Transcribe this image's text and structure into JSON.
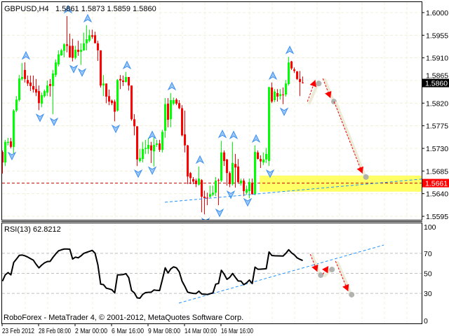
{
  "header": {
    "symbol": "GBPUSD,H4",
    "ohlc": "1.5861 1.5873 1.5859 1.5860"
  },
  "rsi_label": "RSI(13) 62.8212",
  "copyright": "RoboForex - MetaTrader 4, © 2001-2012, MetaQuotes Software Corp.",
  "colors": {
    "bull": "#00ff00",
    "bear": "#ff0000",
    "fractal": "#3b8ff0",
    "trendline": "#1e90ff",
    "zone": "#ffff66",
    "forecast_arrow": "#ff0000",
    "current_price_bg": "#000000",
    "level_price_bg": "#ff0000",
    "rsi_line": "#000000"
  },
  "chart_data": [
    {
      "type": "candlestick",
      "timeframe": "H4",
      "symbol": "GBPUSD",
      "price_axis": {
        "ylim": [
          1.558,
          1.6022
        ],
        "ticks": [
          "1.6000",
          "1.5955",
          "1.5910",
          "1.5865",
          "1.5820",
          "1.5775",
          "1.5730",
          "1.5685",
          "1.5640",
          "1.5595"
        ]
      },
      "time_axis": {
        "ticks": [
          {
            "bar": 0,
            "label": "23 Feb 2012"
          },
          {
            "bar": 13,
            "label": "28 Feb 08:00"
          },
          {
            "bar": 26,
            "label": "2 Mar 00:00"
          },
          {
            "bar": 39,
            "label": "6 Mar 16:00"
          },
          {
            "bar": 52,
            "label": "9 Mar 08:00"
          },
          {
            "bar": 65,
            "label": "14 Mar 00:00"
          },
          {
            "bar": 78,
            "label": "16 Mar 16:00"
          }
        ]
      },
      "grid": true,
      "candles_ohlc": [
        [
          1.5723,
          1.5726,
          1.568,
          1.5702
        ],
        [
          1.5702,
          1.5747,
          1.5695,
          1.5743
        ],
        [
          1.5741,
          1.5751,
          1.5736,
          1.5743
        ],
        [
          1.5744,
          1.5751,
          1.573,
          1.5733
        ],
        [
          1.5733,
          1.5808,
          1.5719,
          1.5805
        ],
        [
          1.5805,
          1.5834,
          1.5802,
          1.5827
        ],
        [
          1.5826,
          1.5876,
          1.5823,
          1.5869
        ],
        [
          1.5868,
          1.59,
          1.5865,
          1.5872
        ],
        [
          1.5886,
          1.5901,
          1.5861,
          1.5868
        ],
        [
          1.5866,
          1.5875,
          1.5854,
          1.5859
        ],
        [
          1.5861,
          1.5875,
          1.5844,
          1.5854
        ],
        [
          1.5854,
          1.5875,
          1.5841,
          1.5847
        ],
        [
          1.5848,
          1.5868,
          1.5834,
          1.5841
        ],
        [
          1.5844,
          1.5855,
          1.5806,
          1.582
        ],
        [
          1.5819,
          1.5841,
          1.5812,
          1.5836
        ],
        [
          1.5834,
          1.5847,
          1.5831,
          1.5844
        ],
        [
          1.5841,
          1.5865,
          1.5834,
          1.5855
        ],
        [
          1.5858,
          1.5868,
          1.5833,
          1.5854
        ],
        [
          1.5854,
          1.5886,
          1.5798,
          1.5879
        ],
        [
          1.5876,
          1.5907,
          1.5872,
          1.5901
        ],
        [
          1.5897,
          1.5925,
          1.5893,
          1.5917
        ],
        [
          1.5915,
          1.5928,
          1.5914,
          1.5925
        ],
        [
          1.5924,
          1.5939,
          1.5911,
          1.5937
        ],
        [
          1.5937,
          1.5993,
          1.5921,
          1.5934
        ],
        [
          1.5934,
          1.5958,
          1.591,
          1.5911
        ],
        [
          1.5934,
          1.5948,
          1.5903,
          1.591
        ],
        [
          1.591,
          1.5934,
          1.5907,
          1.5926
        ],
        [
          1.5926,
          1.5944,
          1.5914,
          1.5922
        ],
        [
          1.5922,
          1.5939,
          1.5896,
          1.5926
        ],
        [
          1.5925,
          1.596,
          1.5924,
          1.5939
        ],
        [
          1.5939,
          1.5975,
          1.5925,
          1.5947
        ],
        [
          1.5944,
          1.5966,
          1.5941,
          1.5955
        ],
        [
          1.5955,
          1.5966,
          1.5948,
          1.5952
        ],
        [
          1.5955,
          1.5962,
          1.5939,
          1.5939
        ],
        [
          1.5939,
          1.5944,
          1.5904,
          1.5925
        ],
        [
          1.5925,
          1.5925,
          1.5851,
          1.5855
        ],
        [
          1.5855,
          1.5876,
          1.5834,
          1.5859
        ],
        [
          1.5859,
          1.5859,
          1.582,
          1.5833
        ],
        [
          1.5834,
          1.5847,
          1.5816,
          1.5823
        ],
        [
          1.5825,
          1.5827,
          1.5816,
          1.582
        ],
        [
          1.5823,
          1.5827,
          1.5784,
          1.5803
        ],
        [
          1.5805,
          1.5868,
          1.5803,
          1.5866
        ],
        [
          1.5868,
          1.5876,
          1.5848,
          1.5865
        ],
        [
          1.5865,
          1.5875,
          1.5854,
          1.5862
        ],
        [
          1.5862,
          1.5882,
          1.5861,
          1.5872
        ],
        [
          1.5872,
          1.5872,
          1.5845,
          1.5855
        ],
        [
          1.5855,
          1.5855,
          1.5785,
          1.5788
        ],
        [
          1.5788,
          1.5798,
          1.5756,
          1.5774
        ],
        [
          1.5774,
          1.5774,
          1.5695,
          1.5708
        ],
        [
          1.5705,
          1.5729,
          1.5702,
          1.5711
        ],
        [
          1.5709,
          1.5743,
          1.5702,
          1.5729
        ],
        [
          1.5729,
          1.5747,
          1.5719,
          1.5731
        ],
        [
          1.5729,
          1.5751,
          1.5719,
          1.5737
        ],
        [
          1.5736,
          1.5743,
          1.5701,
          1.5726
        ],
        [
          1.5724,
          1.5754,
          1.5694,
          1.5737
        ],
        [
          1.5737,
          1.5747,
          1.5733,
          1.574
        ],
        [
          1.574,
          1.5747,
          1.5723,
          1.5727
        ],
        [
          1.5727,
          1.5767,
          1.5722,
          1.5763
        ],
        [
          1.5765,
          1.583,
          1.5751,
          1.5818
        ],
        [
          1.5819,
          1.583,
          1.5772,
          1.5787
        ],
        [
          1.5788,
          1.584,
          1.5772,
          1.5826
        ],
        [
          1.5819,
          1.5831,
          1.5816,
          1.5826
        ],
        [
          1.5827,
          1.583,
          1.5816,
          1.5819
        ],
        [
          1.582,
          1.5826,
          1.5808,
          1.581
        ],
        [
          1.581,
          1.5816,
          1.5754,
          1.5756
        ],
        [
          1.5758,
          1.5805,
          1.5722,
          1.5736
        ],
        [
          1.5736,
          1.5737,
          1.5659,
          1.5674
        ],
        [
          1.5681,
          1.5683,
          1.5659,
          1.5671
        ],
        [
          1.5669,
          1.5673,
          1.5659,
          1.5664
        ],
        [
          1.5666,
          1.567,
          1.5653,
          1.5659
        ],
        [
          1.5658,
          1.5694,
          1.5656,
          1.567
        ],
        [
          1.5667,
          1.5669,
          1.5603,
          1.5634
        ],
        [
          1.5634,
          1.5646,
          1.5599,
          1.5631
        ],
        [
          1.5632,
          1.5642,
          1.5617,
          1.5631
        ],
        [
          1.5634,
          1.5656,
          1.5631,
          1.5639
        ],
        [
          1.5638,
          1.5656,
          1.5635,
          1.5642
        ],
        [
          1.5642,
          1.5673,
          1.5635,
          1.5666
        ],
        [
          1.5667,
          1.567,
          1.5617,
          1.5666
        ],
        [
          1.5666,
          1.5745,
          1.5663,
          1.5722
        ],
        [
          1.5722,
          1.5726,
          1.5695,
          1.5705
        ],
        [
          1.5708,
          1.5709,
          1.5656,
          1.5681
        ],
        [
          1.5681,
          1.5684,
          1.5653,
          1.5659
        ],
        [
          1.5659,
          1.5743,
          1.5656,
          1.5701
        ],
        [
          1.5699,
          1.5719,
          1.5652,
          1.5692
        ],
        [
          1.5694,
          1.5709,
          1.566,
          1.5663
        ],
        [
          1.566,
          1.567,
          1.5656,
          1.5666
        ],
        [
          1.5666,
          1.567,
          1.5635,
          1.5645
        ],
        [
          1.5642,
          1.5656,
          1.5638,
          1.5649
        ],
        [
          1.5645,
          1.567,
          1.5631,
          1.5663
        ],
        [
          1.5662,
          1.567,
          1.5638,
          1.5639
        ],
        [
          1.5639,
          1.5736,
          1.5637,
          1.5723
        ],
        [
          1.5722,
          1.5726,
          1.5708,
          1.5709
        ],
        [
          1.5709,
          1.5716,
          1.5691,
          1.5704
        ],
        [
          1.5702,
          1.5722,
          1.5697,
          1.5708
        ],
        [
          1.5708,
          1.5731,
          1.5701,
          1.5719
        ],
        [
          1.5705,
          1.5852,
          1.5695,
          1.5852
        ],
        [
          1.5851,
          1.5861,
          1.582,
          1.5823
        ],
        [
          1.5826,
          1.5848,
          1.5822,
          1.5843
        ],
        [
          1.584,
          1.5848,
          1.5823,
          1.5833
        ],
        [
          1.5834,
          1.5848,
          1.5827,
          1.5838
        ],
        [
          1.5837,
          1.5851,
          1.5818,
          1.5836
        ],
        [
          1.5837,
          1.5866,
          1.5833,
          1.5859
        ],
        [
          1.5858,
          1.5912,
          1.5855,
          1.5901
        ],
        [
          1.5903,
          1.5904,
          1.5886,
          1.5889
        ],
        [
          1.5887,
          1.5891,
          1.588,
          1.5884
        ],
        [
          1.5883,
          1.5884,
          1.5866,
          1.5868
        ],
        [
          1.5868,
          1.5884,
          1.5834,
          1.5862
        ],
        [
          1.5861,
          1.5873,
          1.5859,
          1.586
        ]
      ],
      "fractals_up": [
        8,
        23,
        30,
        44,
        53,
        60,
        70,
        78,
        82,
        90,
        96,
        102
      ],
      "fractals_down": [
        3,
        13,
        18,
        25,
        28,
        40,
        48,
        53,
        72,
        77,
        81,
        87,
        95,
        100
      ],
      "current_price": "1.5860",
      "level_line": {
        "price": 1.5661,
        "label": "1.5661"
      },
      "support_zone": {
        "from_bar": 92,
        "price_range": [
          1.5644,
          1.5676
        ]
      },
      "trendline": {
        "from": [
          58,
          1.5623
        ],
        "to": [
          149.6,
          1.5669
        ]
      },
      "forecast_arrows": [
        {
          "from": [
            108.8,
            1.5823
          ],
          "to": [
            111.6,
            1.5866
          ]
        },
        {
          "from": [
            114.3,
            1.5869
          ],
          "to": [
            117.0,
            1.583
          ]
        },
        {
          "from": [
            118.3,
            1.5823
          ],
          "to": [
            128.4,
            1.568
          ]
        }
      ]
    },
    {
      "type": "line",
      "name": "RSI(13)",
      "ylim": [
        0,
        100
      ],
      "ticks": [
        "100",
        "70",
        "50",
        "30",
        "0"
      ],
      "levels": [
        70,
        50,
        30
      ],
      "values": [
        42.2,
        48.5,
        50.8,
        48.5,
        60.8,
        64.3,
        68.0,
        68.3,
        67.5,
        66.3,
        64.7,
        63.2,
        59.0,
        55.5,
        58.3,
        60.5,
        61.8,
        62.0,
        66.0,
        69.5,
        72.5,
        73.5,
        74.3,
        74.3,
        74.1,
        64.3,
        66.2,
        65.5,
        67.5,
        70.0,
        71.0,
        72.0,
        72.9,
        70.1,
        58.5,
        39.2,
        38.7,
        35.2,
        34.5,
        33.6,
        30.5,
        48.5,
        48.5,
        48.8,
        49.7,
        45.7,
        32.9,
        30.5,
        25.5,
        25.2,
        29.0,
        30.8,
        31.0,
        31.2,
        33.4,
        33.0,
        32.9,
        44.0,
        55.5,
        50.3,
        54.5,
        56.5,
        55.5,
        51.5,
        42.2,
        37.0,
        31.2,
        30.5,
        30.0,
        29.8,
        32.2,
        29.4,
        29.1,
        28.9,
        29.7,
        30.5,
        39.2,
        39.9,
        53.1,
        49.2,
        44.0,
        46.0,
        49.9,
        46.0,
        42.4,
        42.2,
        38.7,
        40.5,
        43.3,
        39.8,
        56.2,
        54.1,
        54.2,
        54.4,
        54.6,
        71.3,
        67.8,
        67.6,
        67.5,
        67.4,
        67.3,
        70.0,
        73.6,
        70.5,
        68.5,
        65.5,
        64.0,
        62.8
      ],
      "trendline": {
        "from": [
          63,
          20.3
        ],
        "to": [
          136,
          78.3
        ]
      },
      "forecast_arrows": [
        {
          "from": [
            109.8,
            69.2
          ],
          "to": [
            112.3,
            51.7
          ]
        },
        {
          "from": [
            114.3,
            49.0
          ],
          "to": [
            116.3,
            57.3
          ]
        },
        {
          "from": [
            118.8,
            62.2
          ],
          "to": [
            123.3,
            32.2
          ]
        }
      ]
    }
  ]
}
